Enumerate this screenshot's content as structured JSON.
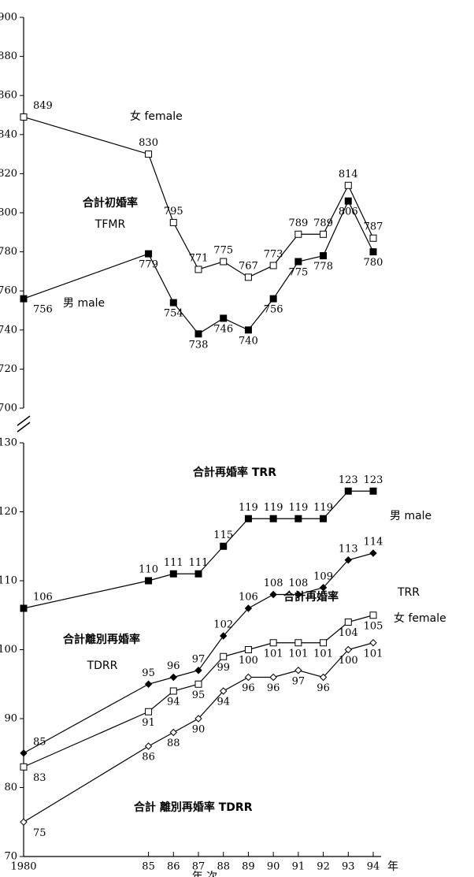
{
  "chart_data": [
    {
      "type": "line",
      "x": [
        1980,
        1985,
        1986,
        1987,
        1988,
        1989,
        1990,
        1991,
        1992,
        1993,
        1994
      ],
      "xlim": [
        1980,
        1994
      ],
      "ylim": [
        700,
        900
      ],
      "yticks": [
        700,
        720,
        740,
        760,
        780,
        800,
        820,
        840,
        860,
        880,
        900
      ],
      "annotations": [
        "女 female",
        "合計初婚率",
        "TFMR",
        "男 male"
      ],
      "series": [
        {
          "name": "female TFMR",
          "color": "#000000",
          "marker": "square",
          "filled": false,
          "values": [
            849,
            830,
            795,
            771,
            775,
            767,
            773,
            789,
            789,
            814,
            787
          ]
        },
        {
          "name": "male TFMR",
          "color": "#000000",
          "marker": "square",
          "filled": true,
          "values": [
            756,
            779,
            754,
            738,
            746,
            740,
            756,
            775,
            778,
            806,
            780
          ]
        }
      ]
    },
    {
      "type": "line",
      "x": [
        1980,
        1985,
        1986,
        1987,
        1988,
        1989,
        1990,
        1991,
        1992,
        1993,
        1994
      ],
      "xlim": [
        1980,
        1994
      ],
      "ylim": [
        70,
        130
      ],
      "yticks": [
        70,
        80,
        90,
        100,
        110,
        120,
        130
      ],
      "xticks": [
        {
          "value": 1980,
          "label": "1980"
        },
        {
          "value": 1985,
          "label": "85"
        },
        {
          "value": 1986,
          "label": "86"
        },
        {
          "value": 1987,
          "label": "87"
        },
        {
          "value": 1988,
          "label": "88"
        },
        {
          "value": 1989,
          "label": "89"
        },
        {
          "value": 1990,
          "label": "90"
        },
        {
          "value": 1991,
          "label": "91"
        },
        {
          "value": 1992,
          "label": "92"
        },
        {
          "value": 1993,
          "label": "93"
        },
        {
          "value": 1994,
          "label": "94"
        }
      ],
      "x_unit": "年",
      "x_label": "年 次",
      "annotations": [
        "合計再婚率 TRR",
        "男 male",
        "合計再婚率",
        "TRR",
        "女 female",
        "合計離別再婚率",
        "TDRR",
        "合計 離別再婚率 TDRR"
      ],
      "series": [
        {
          "name": "male TRR",
          "color": "#000000",
          "marker": "square",
          "filled": true,
          "values": [
            106,
            110,
            111,
            111,
            115,
            119,
            119,
            119,
            119,
            123,
            123
          ]
        },
        {
          "name": "male TDRR",
          "color": "#000000",
          "marker": "diamond",
          "filled": true,
          "values": [
            85,
            95,
            96,
            97,
            102,
            106,
            108,
            108,
            109,
            113,
            114
          ]
        },
        {
          "name": "female TRR",
          "color": "#000000",
          "marker": "square",
          "filled": false,
          "values": [
            83,
            91,
            94,
            95,
            99,
            100,
            101,
            101,
            101,
            104,
            105
          ]
        },
        {
          "name": "female TDRR",
          "color": "#000000",
          "marker": "diamond",
          "filled": false,
          "values": [
            75,
            86,
            88,
            90,
            94,
            96,
            96,
            97,
            96,
            100,
            101
          ]
        }
      ]
    }
  ]
}
